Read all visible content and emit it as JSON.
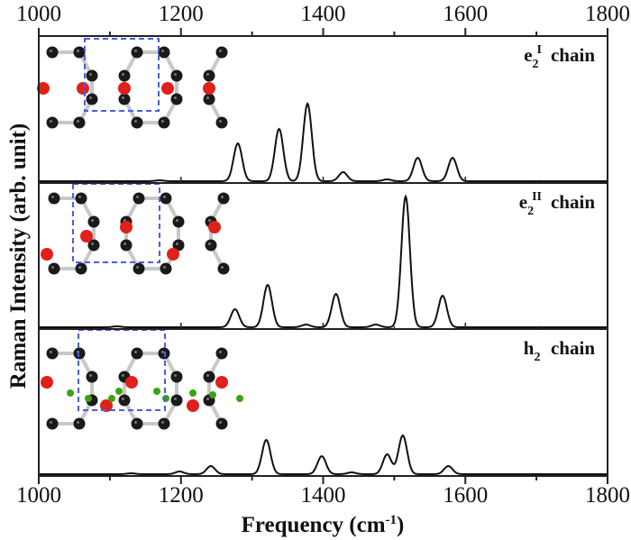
{
  "chart_data": {
    "type": "line",
    "layout": "stacked-panels",
    "xlabel": "Frequency (cm-1)",
    "xlabel_main": "Frequency (cm",
    "xlabel_sup": "-1",
    "xlabel_close": ")",
    "ylabel": "Raman Intensity (arb. unit)",
    "xlim": [
      1000,
      1800
    ],
    "xticks_major": [
      1000,
      1200,
      1400,
      1600,
      1800
    ],
    "xticks_minor": [
      1100,
      1300,
      1500,
      1700
    ],
    "xtick_labels": [
      "1000",
      "1200",
      "1400",
      "1600",
      "1800"
    ],
    "grid": false,
    "legend": null,
    "peak_width_sigma_cm": 6,
    "panels": [
      {
        "name": "e2I chain",
        "label_base": "e",
        "label_sub": "2",
        "label_sup": "I",
        "label_suffix": "chain",
        "peaks": [
          {
            "x": 1170,
            "height": 1
          },
          {
            "x": 1280,
            "height": 42
          },
          {
            "x": 1338,
            "height": 58
          },
          {
            "x": 1378,
            "height": 86
          },
          {
            "x": 1428,
            "height": 10
          },
          {
            "x": 1490,
            "height": 2
          },
          {
            "x": 1533,
            "height": 26
          },
          {
            "x": 1582,
            "height": 26
          }
        ]
      },
      {
        "name": "e2II chain",
        "label_base": "e",
        "label_sub": "2",
        "label_sup": "II",
        "label_suffix": "chain",
        "peaks": [
          {
            "x": 1110,
            "height": 1
          },
          {
            "x": 1276,
            "height": 20
          },
          {
            "x": 1322,
            "height": 47
          },
          {
            "x": 1376,
            "height": 3
          },
          {
            "x": 1418,
            "height": 37
          },
          {
            "x": 1474,
            "height": 3
          },
          {
            "x": 1516,
            "height": 145
          },
          {
            "x": 1568,
            "height": 35
          }
        ]
      },
      {
        "name": "h2 chain",
        "label_base": "h",
        "label_sub": "2",
        "label_sup": "",
        "label_suffix": "chain",
        "peaks": [
          {
            "x": 1130,
            "height": 1
          },
          {
            "x": 1198,
            "height": 3
          },
          {
            "x": 1242,
            "height": 9
          },
          {
            "x": 1320,
            "height": 38
          },
          {
            "x": 1398,
            "height": 20
          },
          {
            "x": 1440,
            "height": 2
          },
          {
            "x": 1490,
            "height": 22
          },
          {
            "x": 1512,
            "height": 43
          },
          {
            "x": 1576,
            "height": 9
          }
        ]
      }
    ],
    "insets": [
      {
        "panel": 0,
        "description": "graphene nanoribbon structure with carbon (black) and oxygen (red) atoms, dashed blue unit cell"
      },
      {
        "panel": 1,
        "description": "graphene nanoribbon structure with carbon (black) and oxygen (red) atoms, dashed blue unit cell"
      },
      {
        "panel": 2,
        "description": "graphene nanoribbon structure with carbon (black), oxygen (red) and hydrogen (green) atoms, dashed blue unit cell"
      }
    ],
    "colors": {
      "line": "#111111",
      "axis": "#222222",
      "carbon": "#1a1a1a",
      "oxygen": "#e0201b",
      "hydrogen": "#3aa315",
      "bond": "#c8c8c8",
      "unit_cell": "#4a5ee8"
    }
  }
}
